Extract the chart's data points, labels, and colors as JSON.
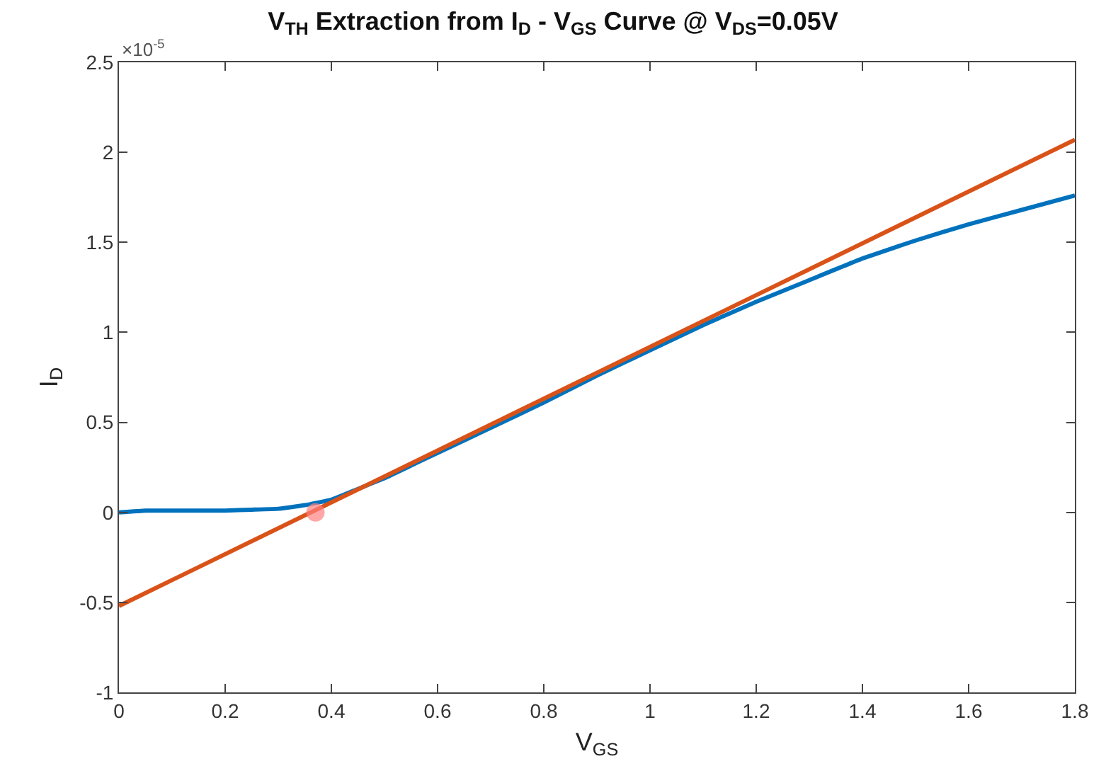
{
  "chart_data": {
    "type": "line",
    "title": "V$_{TH}$ Extraction from I$_{D}$ - V$_{GS}$ Curve @ V$_{DS}$=0.05V",
    "xlabel": "V$_{GS}$",
    "ylabel": "I$_{D}$",
    "annotations": [
      "×10$^{-5}$"
    ],
    "xlim": [
      0,
      1.8
    ],
    "xticks": [
      0,
      0.2,
      0.4,
      0.6,
      0.8,
      1,
      1.2,
      1.4,
      1.6,
      1.8
    ],
    "ylim": [
      -1,
      2.5
    ],
    "yticks": [
      -1,
      -0.5,
      0,
      0.5,
      1,
      1.5,
      2,
      2.5
    ],
    "line_style": "solid",
    "series": [
      {
        "marker": "none",
        "color": "#0072bd",
        "x": [
          0,
          0.05,
          0.1,
          0.15,
          0.2,
          0.25,
          0.3,
          0.35,
          0.4,
          0.45,
          0.5,
          0.55,
          0.6,
          0.7,
          0.8,
          0.9,
          1.0,
          1.1,
          1.2,
          1.3,
          1.4,
          1.5,
          1.6,
          1.7,
          1.8
        ],
        "values": [
          0,
          0.01,
          0.01,
          0.01,
          0.01,
          0.015,
          0.02,
          0.04,
          0.07,
          0.13,
          0.19,
          0.26,
          0.33,
          0.47,
          0.61,
          0.76,
          0.9,
          1.04,
          1.17,
          1.29,
          1.41,
          1.51,
          1.6,
          1.68,
          1.76
        ]
      },
      {
        "marker": "none",
        "color": "#d95319",
        "x": [
          0,
          1.8
        ],
        "values": [
          -0.52,
          2.07
        ]
      },
      {
        "type": "scatter",
        "color": "#ff8080",
        "marker": "circle",
        "x": [
          0.37
        ],
        "values": [
          0
        ]
      }
    ]
  }
}
